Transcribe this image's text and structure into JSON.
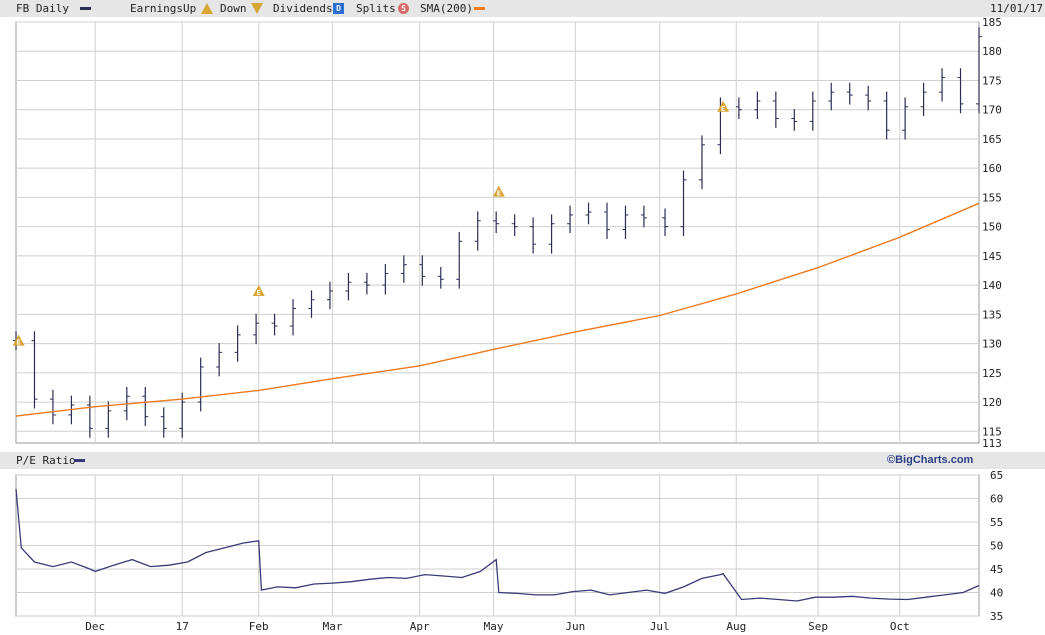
{
  "legend": {
    "symbol_label": "FB Daily",
    "earnings_label": "Earnings",
    "up_label": "Up",
    "down_label": "Down",
    "dividends_label": "Dividends",
    "dividends_badge": "D",
    "splits_label": "Splits",
    "splits_badge": "S",
    "sma_label": "SMA(200)",
    "date_label": "11/01/17"
  },
  "pe_panel": {
    "label": "P/E Ratio",
    "source": "©BigCharts.com"
  },
  "colors": {
    "price": "#2b2d55",
    "sma": "#f07a1e",
    "pe": "#3a3a78",
    "earnings_badge": "#d8a536",
    "dividends_badge": "#2a6fd6",
    "splits_badge": "#d96a6a",
    "header_bg": "#e6e6e6",
    "grid": "#cfcfcf"
  },
  "chart_data": [
    {
      "type": "line",
      "title": "FB Daily",
      "y_axis_side": "right",
      "ylim": [
        113,
        185
      ],
      "y_ticks": [
        113,
        115,
        120,
        125,
        130,
        135,
        140,
        145,
        150,
        155,
        160,
        165,
        170,
        175,
        180,
        185
      ],
      "x_ticks": [
        "Dec",
        "17",
        "Feb",
        "Mar",
        "Apr",
        "May",
        "Jun",
        "Jul",
        "Aug",
        "Sep",
        "Oct"
      ],
      "x_tick_dates": [
        "2016-12-01",
        "2017-01-03",
        "2017-02-01",
        "2017-03-01",
        "2017-04-03",
        "2017-05-01",
        "2017-06-01",
        "2017-07-03",
        "2017-08-01",
        "2017-09-01",
        "2017-10-02"
      ],
      "series": [
        {
          "name": "FB Daily",
          "style": "ohlc-bars",
          "x": [
            "2016-11-01",
            "2016-11-08",
            "2016-11-15",
            "2016-11-22",
            "2016-11-29",
            "2016-12-06",
            "2016-12-13",
            "2016-12-20",
            "2016-12-27",
            "2017-01-03",
            "2017-01-10",
            "2017-01-17",
            "2017-01-24",
            "2017-01-31",
            "2017-02-07",
            "2017-02-14",
            "2017-02-21",
            "2017-02-28",
            "2017-03-07",
            "2017-03-14",
            "2017-03-21",
            "2017-03-28",
            "2017-04-04",
            "2017-04-11",
            "2017-04-18",
            "2017-04-25",
            "2017-05-02",
            "2017-05-09",
            "2017-05-16",
            "2017-05-23",
            "2017-05-30",
            "2017-06-06",
            "2017-06-13",
            "2017-06-20",
            "2017-06-27",
            "2017-07-05",
            "2017-07-12",
            "2017-07-19",
            "2017-07-26",
            "2017-08-02",
            "2017-08-09",
            "2017-08-16",
            "2017-08-23",
            "2017-08-30",
            "2017-09-06",
            "2017-09-13",
            "2017-09-20",
            "2017-09-27",
            "2017-10-04",
            "2017-10-11",
            "2017-10-18",
            "2017-10-25",
            "2017-11-01"
          ],
          "values": [
            130.5,
            120.5,
            117.8,
            119.5,
            115.5,
            118.5,
            121.0,
            117.5,
            115.5,
            120.0,
            126.0,
            128.5,
            131.5,
            133.5,
            133.0,
            136.0,
            137.5,
            139.0,
            140.5,
            140.0,
            142.0,
            143.5,
            141.5,
            141.0,
            147.5,
            151.0,
            150.5,
            150.0,
            147.0,
            150.5,
            152.0,
            152.5,
            149.5,
            152.0,
            151.5,
            150.0,
            158.0,
            164.0,
            170.5,
            170.0,
            171.5,
            168.5,
            168.0,
            171.5,
            173.0,
            172.5,
            171.5,
            166.5,
            170.5,
            173.0,
            175.5,
            171.0,
            182.5
          ]
        },
        {
          "name": "SMA(200)",
          "style": "line",
          "x": [
            "2016-11-01",
            "2016-12-01",
            "2017-01-03",
            "2017-02-01",
            "2017-03-01",
            "2017-04-03",
            "2017-05-01",
            "2017-06-01",
            "2017-07-03",
            "2017-08-01",
            "2017-09-01",
            "2017-10-02",
            "2017-11-01"
          ],
          "values": [
            117.6,
            119.2,
            120.5,
            122.0,
            124.0,
            126.2,
            129.0,
            132.0,
            134.8,
            138.5,
            143.0,
            148.2,
            154.0
          ]
        }
      ],
      "annotations": [
        {
          "label": "E",
          "type": "earnings",
          "x": "2016-11-02",
          "y": 130.5
        },
        {
          "label": "E",
          "type": "earnings",
          "x": "2017-02-01",
          "y": 139.0
        },
        {
          "label": "E",
          "type": "earnings",
          "x": "2017-05-03",
          "y": 156.0
        },
        {
          "label": "E",
          "type": "earnings",
          "x": "2017-07-27",
          "y": 170.5
        }
      ]
    },
    {
      "type": "line",
      "title": "P/E Ratio",
      "y_axis_side": "right",
      "ylim": [
        35,
        65
      ],
      "y_ticks": [
        35,
        40,
        45,
        50,
        55,
        60,
        65
      ],
      "x_ticks": [
        "Dec",
        "17",
        "Feb",
        "Mar",
        "Apr",
        "May",
        "Jun",
        "Jul",
        "Aug",
        "Sep",
        "Oct"
      ],
      "series": [
        {
          "name": "P/E Ratio",
          "x": [
            "2016-11-01",
            "2016-11-03",
            "2016-11-08",
            "2016-11-15",
            "2016-11-22",
            "2016-11-29",
            "2016-12-01",
            "2016-12-08",
            "2016-12-15",
            "2016-12-22",
            "2016-12-29",
            "2017-01-05",
            "2017-01-12",
            "2017-01-19",
            "2017-01-26",
            "2017-02-01",
            "2017-02-02",
            "2017-02-08",
            "2017-02-15",
            "2017-02-22",
            "2017-03-01",
            "2017-03-08",
            "2017-03-15",
            "2017-03-22",
            "2017-03-29",
            "2017-04-05",
            "2017-04-12",
            "2017-04-19",
            "2017-04-26",
            "2017-05-02",
            "2017-05-03",
            "2017-05-10",
            "2017-05-17",
            "2017-05-24",
            "2017-05-31",
            "2017-06-07",
            "2017-06-14",
            "2017-06-21",
            "2017-06-28",
            "2017-07-05",
            "2017-07-12",
            "2017-07-19",
            "2017-07-26",
            "2017-07-27",
            "2017-08-03",
            "2017-08-10",
            "2017-08-17",
            "2017-08-24",
            "2017-08-31",
            "2017-09-07",
            "2017-09-14",
            "2017-09-21",
            "2017-09-28",
            "2017-10-05",
            "2017-10-12",
            "2017-10-19",
            "2017-10-26",
            "2017-11-01"
          ],
          "values": [
            62.0,
            49.5,
            46.5,
            45.5,
            46.5,
            45.0,
            44.5,
            45.8,
            47.0,
            45.5,
            45.8,
            46.5,
            48.5,
            49.5,
            50.5,
            51.0,
            40.5,
            41.2,
            41.0,
            41.8,
            42.0,
            42.3,
            42.8,
            43.2,
            43.0,
            43.8,
            43.5,
            43.2,
            44.5,
            47.0,
            40.0,
            39.8,
            39.5,
            39.5,
            40.2,
            40.5,
            39.5,
            40.0,
            40.5,
            39.8,
            41.2,
            43.0,
            43.8,
            44.0,
            38.5,
            38.8,
            38.5,
            38.2,
            39.0,
            39.0,
            39.2,
            38.8,
            38.6,
            38.5,
            39.0,
            39.5,
            40.0,
            41.5
          ]
        }
      ]
    }
  ]
}
